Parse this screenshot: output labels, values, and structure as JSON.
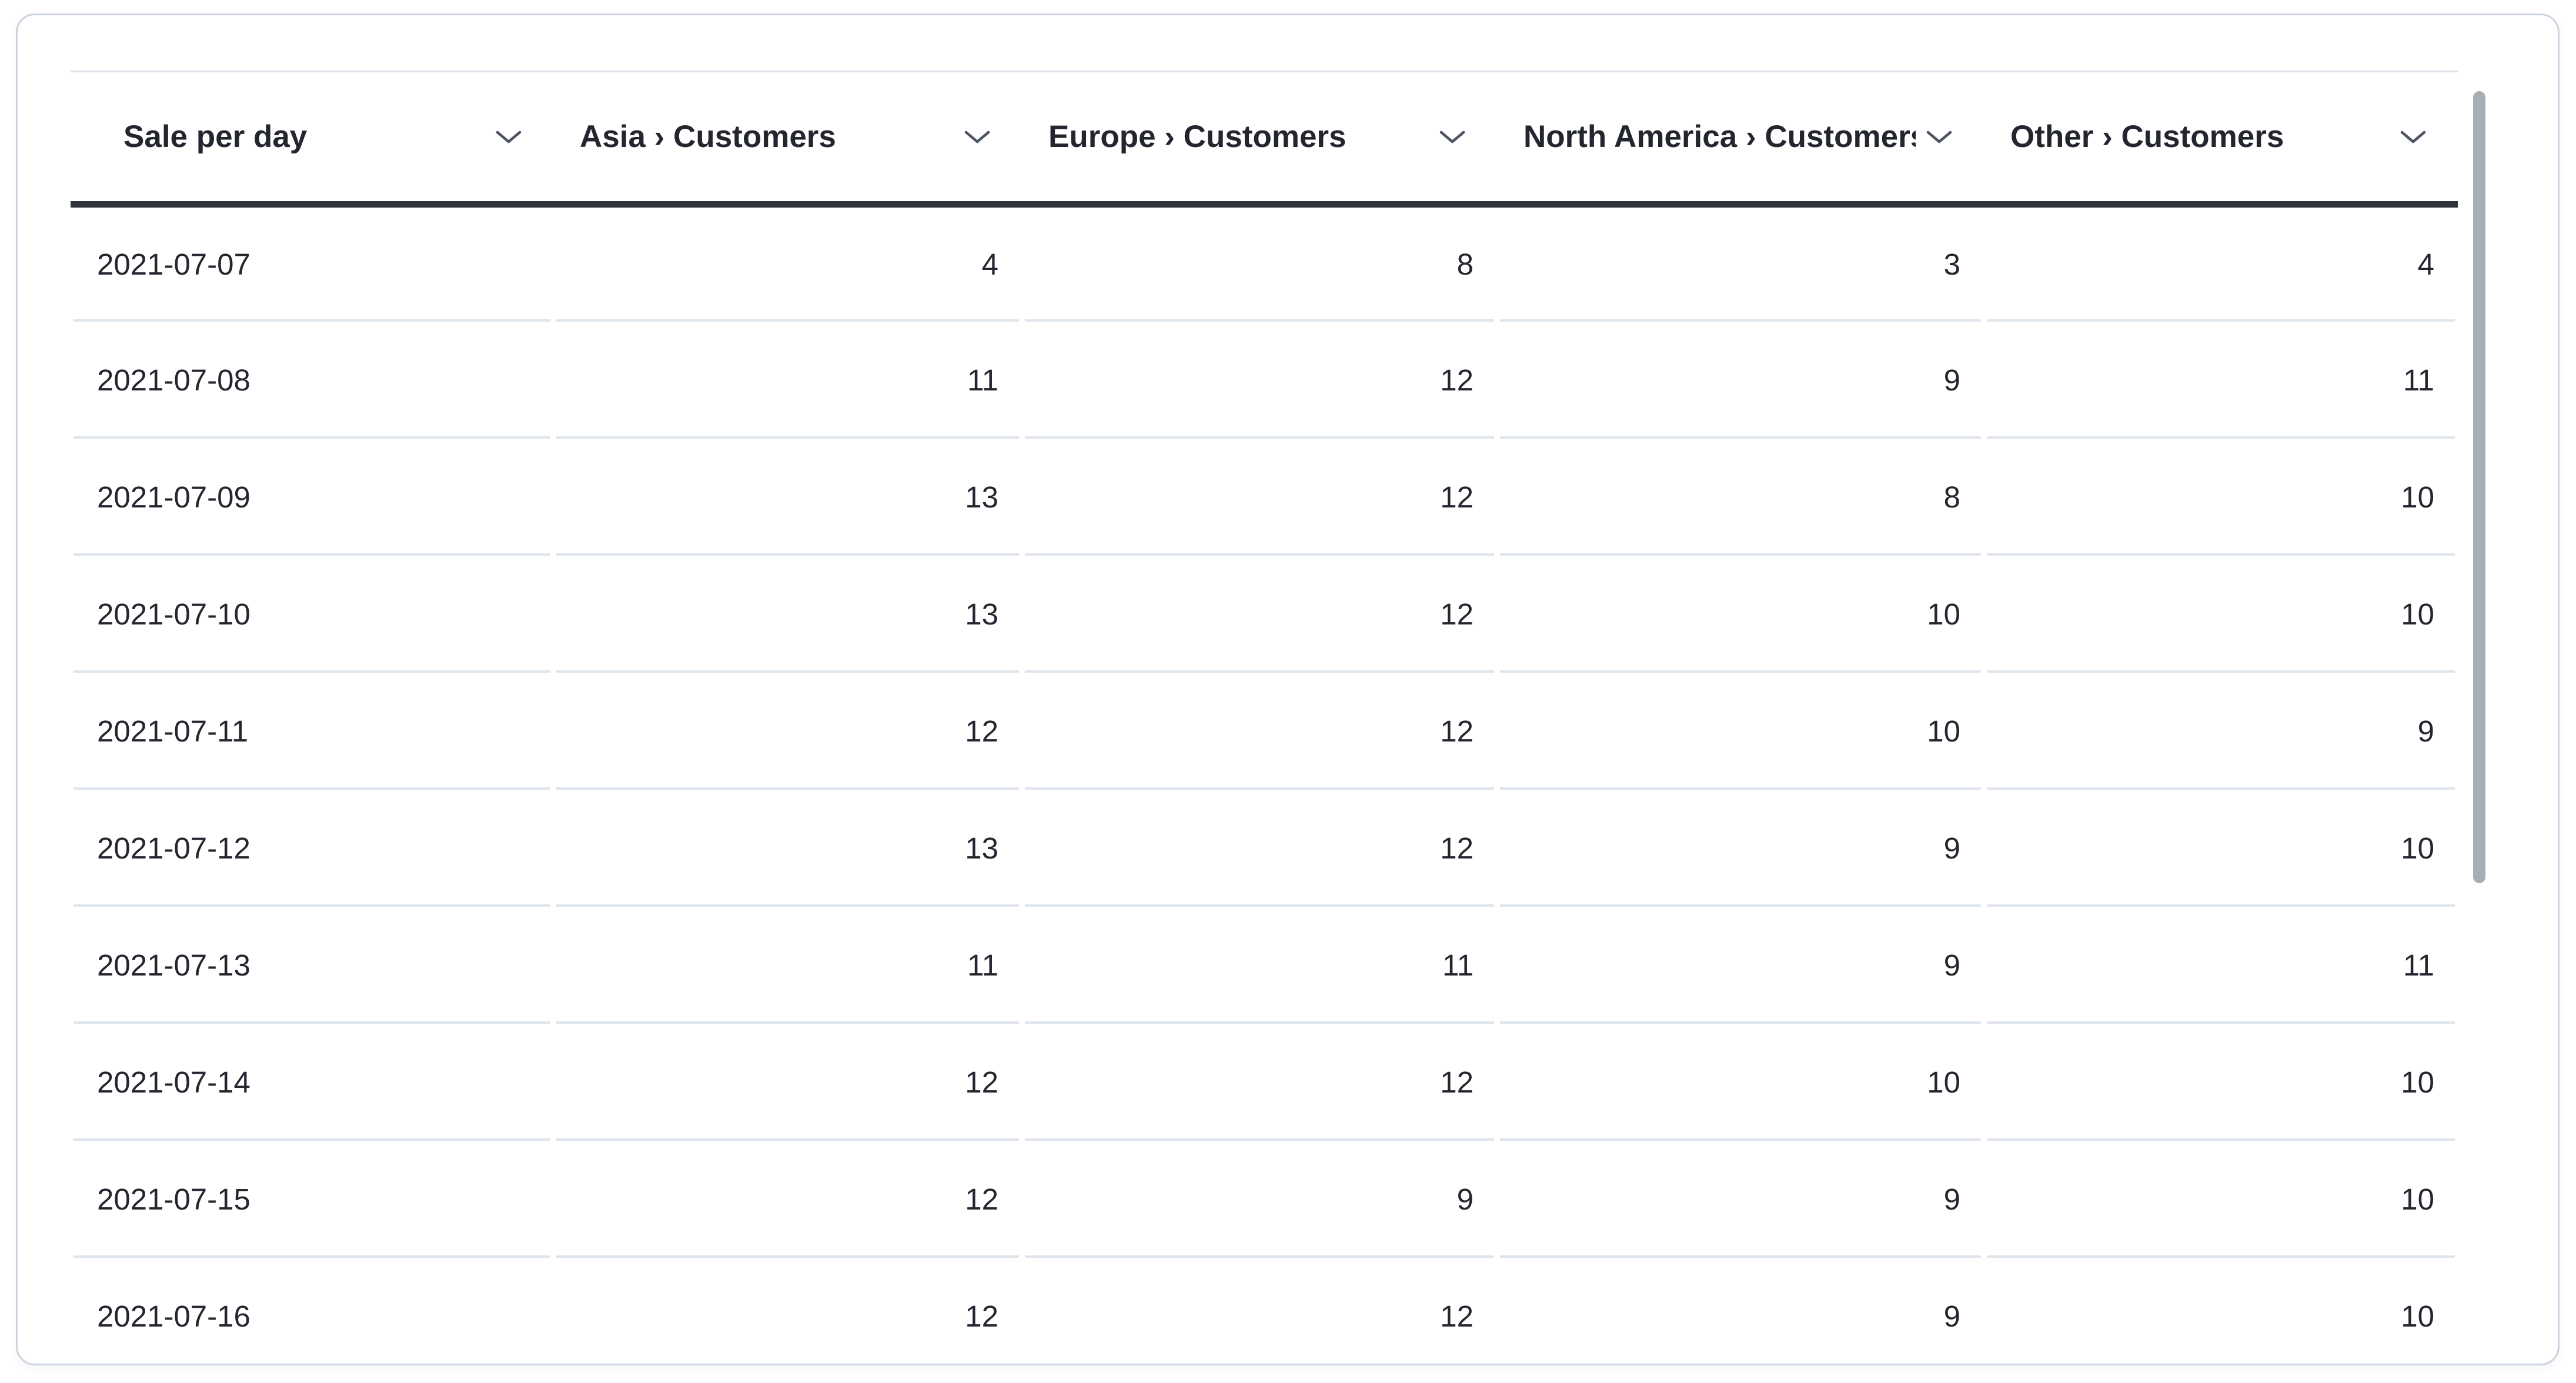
{
  "card": {
    "type": "table-question-card"
  },
  "table": {
    "columns": [
      {
        "label": "Sale per day",
        "align": "left"
      },
      {
        "label": "Asia › Customers",
        "align": "right"
      },
      {
        "label": "Europe › Customers",
        "align": "right"
      },
      {
        "label": "North America › Customers",
        "align": "right"
      },
      {
        "label": "Other › Customers",
        "align": "right"
      }
    ],
    "rows": [
      [
        "2021-07-07",
        "4",
        "8",
        "3",
        "4"
      ],
      [
        "2021-07-08",
        "11",
        "12",
        "9",
        "11"
      ],
      [
        "2021-07-09",
        "13",
        "12",
        "8",
        "10"
      ],
      [
        "2021-07-10",
        "13",
        "12",
        "10",
        "10"
      ],
      [
        "2021-07-11",
        "12",
        "12",
        "10",
        "9"
      ],
      [
        "2021-07-12",
        "13",
        "12",
        "9",
        "10"
      ],
      [
        "2021-07-13",
        "11",
        "11",
        "9",
        "11"
      ],
      [
        "2021-07-14",
        "12",
        "12",
        "10",
        "10"
      ],
      [
        "2021-07-15",
        "12",
        "9",
        "9",
        "10"
      ],
      [
        "2021-07-16",
        "12",
        "12",
        "9",
        "10"
      ]
    ]
  },
  "scrollbar": {
    "orientation": "vertical",
    "visible": true
  },
  "icons": {
    "header_sort": "chevron-down"
  },
  "colors": {
    "background": "#ffffff",
    "text": "#23262f",
    "card_border": "#cad3de",
    "table_top_border": "#d9e0e8",
    "header_underline": "#2e333c",
    "row_divider": "#dfe5ec",
    "chevron": "#4b5462",
    "scrollbar_thumb": "#a9aeb4"
  }
}
